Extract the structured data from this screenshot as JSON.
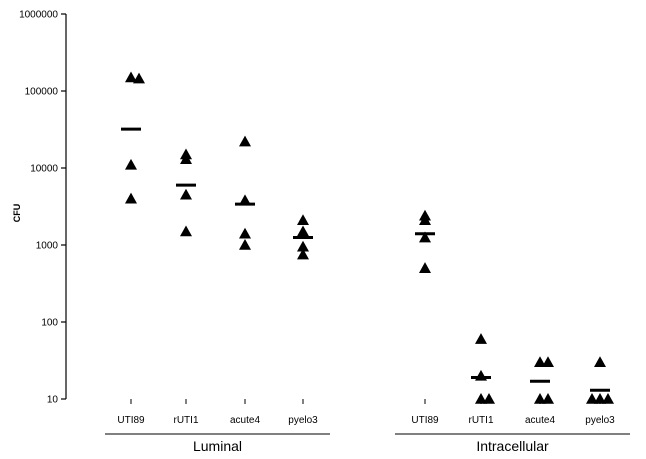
{
  "chart_data": {
    "type": "scatter",
    "title": "",
    "xlabel": "",
    "ylabel": "CFU",
    "yscale": "log",
    "ylim": [
      10,
      1000000
    ],
    "yticks": [
      "10",
      "100",
      "1000",
      "10000",
      "100000",
      "1000000"
    ],
    "grid": false,
    "marker": "triangle",
    "mean_marker": "horizontal bar",
    "groups": [
      {
        "name": "Luminal",
        "categories": [
          {
            "label": "UTI89",
            "points": [
              150000,
              145000,
              11000,
              4000
            ],
            "mean": 32000
          },
          {
            "label": "rUTI1",
            "points": [
              15000,
              13000,
              4500,
              1500
            ],
            "mean": 6000
          },
          {
            "label": "acute4",
            "points": [
              22000,
              3800,
              1400,
              1000
            ],
            "mean": 3400
          },
          {
            "label": "pyelo3",
            "points": [
              2100,
              1500,
              950,
              750
            ],
            "mean": 1250
          }
        ]
      },
      {
        "name": "Intracellular",
        "categories": [
          {
            "label": "UTI89",
            "points": [
              2400,
              2100,
              1250,
              500
            ],
            "mean": 1400
          },
          {
            "label": "rUTI1",
            "points": [
              60,
              20,
              10,
              10
            ],
            "mean": 19
          },
          {
            "label": "acute4",
            "points": [
              30,
              30,
              10,
              10
            ],
            "mean": 17
          },
          {
            "label": "pyelo3",
            "points": [
              30,
              10,
              10,
              10
            ],
            "mean": 13
          }
        ]
      }
    ]
  }
}
